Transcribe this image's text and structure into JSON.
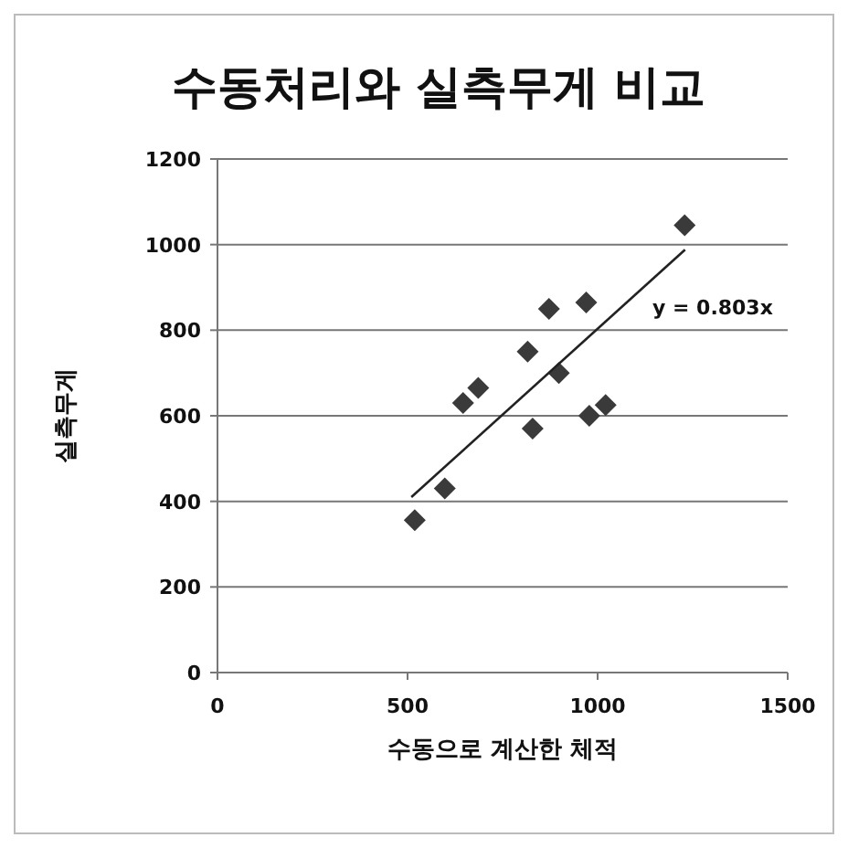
{
  "chart_data": {
    "type": "scatter",
    "title": "수동처리와 실측무게 비교",
    "xlabel": "수동으로 계산한 체적",
    "ylabel": "실측무게",
    "xlim": [
      0,
      1500
    ],
    "xticks": [
      0,
      500,
      1000,
      1500
    ],
    "ylim": [
      0,
      1200
    ],
    "yticks": [
      0,
      200,
      400,
      600,
      800,
      1000,
      1200
    ],
    "grid": "y",
    "series": [
      {
        "marker": "diamond",
        "color": "#3a3a3a",
        "x": [
          519,
          598,
          646,
          686,
          816,
          829,
          872,
          898,
          970,
          978,
          1021,
          1229
        ],
        "values": [
          356,
          430,
          630,
          665,
          750,
          570,
          850,
          700,
          865,
          600,
          625,
          1045
        ]
      },
      {
        "type": "line",
        "color": "#222222",
        "x": [
          510,
          1230
        ],
        "values": [
          410,
          988
        ]
      }
    ],
    "annotations": [
      "y = 0.803x"
    ]
  }
}
